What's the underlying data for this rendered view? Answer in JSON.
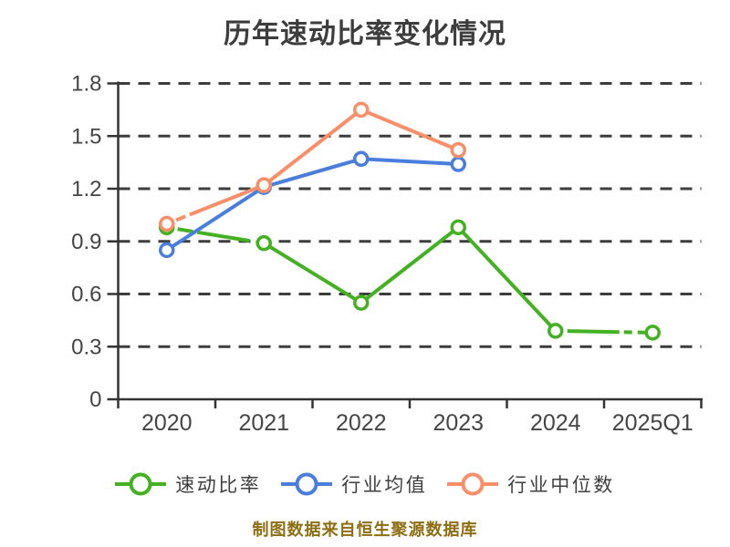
{
  "header": {
    "title": "历年速动比率变化情况",
    "title_color": "#3d3d3d"
  },
  "footer": {
    "caption": "制图数据来自恒生聚源数据库",
    "caption_color": "#8e6e12"
  },
  "axis_style": {
    "axis_color": "#333333",
    "grid_color": "#3d3d3d",
    "tick_label_color": "#454545"
  },
  "chart_data": {
    "type": "line",
    "title": "历年速动比率变化情况",
    "categories": [
      "2020",
      "2021",
      "2022",
      "2023",
      "2024",
      "2025Q1"
    ],
    "series": [
      {
        "id": "quick-ratio",
        "name": "速动比率",
        "color": "#43b121",
        "values": [
          0.98,
          0.89,
          0.55,
          0.98,
          0.39,
          0.38
        ],
        "dashed_segments": {
          "0": "7 5 17 5 58 7",
          "4": "8 5 57 5 9 6"
        }
      },
      {
        "id": "industry-average",
        "name": "行业均值",
        "color": "#4a7edc",
        "values": [
          0.85,
          1.21,
          1.37,
          1.34,
          null,
          null
        ],
        "dashed_segments": {}
      },
      {
        "id": "industry-median",
        "name": "行业中位数",
        "color": "#f98e68",
        "values": [
          1.0,
          1.22,
          1.65,
          1.42,
          null,
          null
        ],
        "dashed_segments": {
          "0": "6 5 11 5 999"
        }
      }
    ],
    "ylim": [
      0,
      1.8
    ],
    "ytick_step": 0.3,
    "ytick_labels": [
      "0",
      "0.3",
      "0.6",
      "0.9",
      "1.2",
      "1.5",
      "1.8"
    ],
    "xlabel": "",
    "ylabel": "",
    "grid": "horizontal-dashed",
    "legend_position": "bottom",
    "marker": "circle-white-fill"
  }
}
